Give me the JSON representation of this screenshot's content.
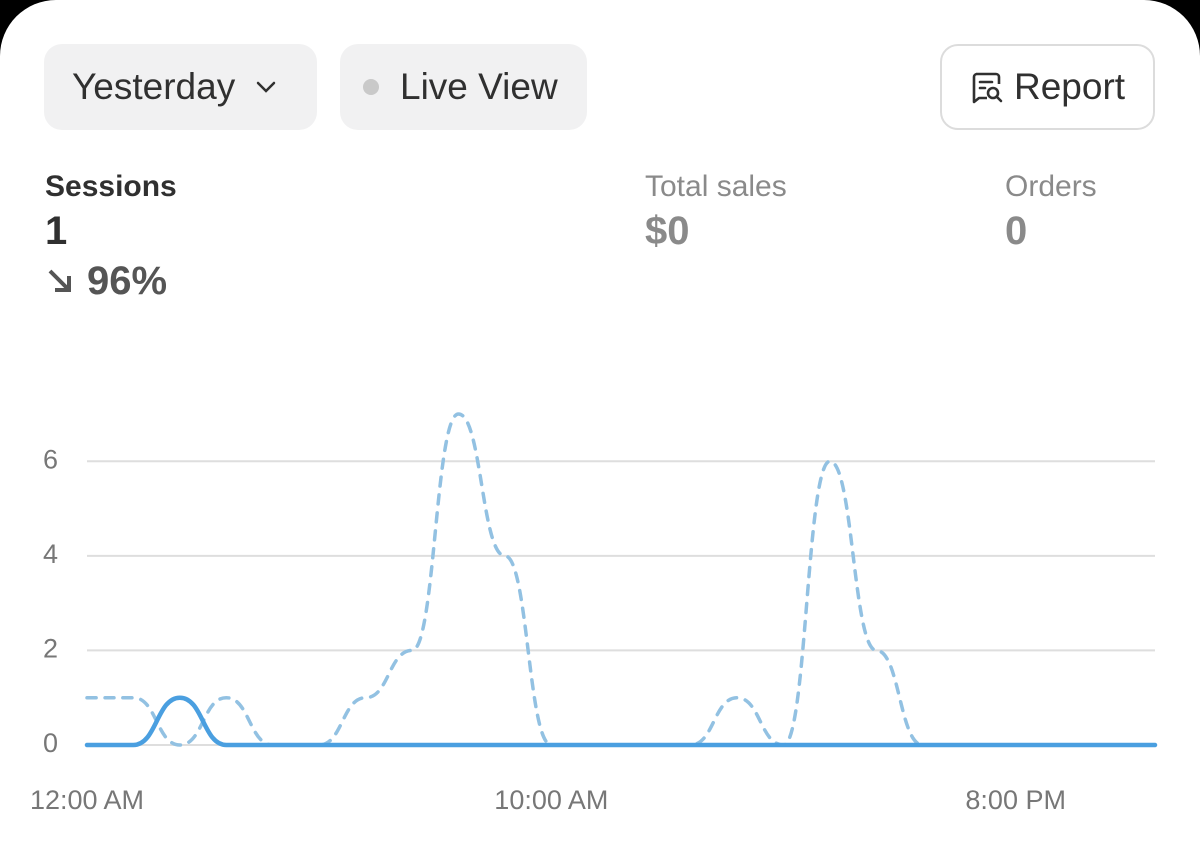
{
  "toolbar": {
    "period": "Yesterday",
    "live": "Live View",
    "report": "Report"
  },
  "metrics": [
    {
      "label": "Sessions",
      "value": "1",
      "change": "96%"
    },
    {
      "label": "Total sales",
      "value": "$0"
    },
    {
      "label": "Orders",
      "value": "0"
    }
  ],
  "chart_data": {
    "type": "line",
    "categories": [
      "12:00 AM",
      null,
      null,
      null,
      null,
      null,
      null,
      null,
      null,
      null,
      "10:00 AM",
      null,
      null,
      null,
      null,
      null,
      null,
      null,
      null,
      null,
      "8:00 PM",
      null,
      null,
      null
    ],
    "series": [
      {
        "color": "#92c1e2",
        "style": "dashed",
        "values": [
          1,
          1,
          0,
          1,
          0,
          0,
          1,
          2,
          7,
          4,
          0,
          0,
          0,
          0,
          1,
          0,
          6,
          2,
          0,
          0,
          0,
          0,
          0,
          0
        ]
      },
      {
        "color": "#4a9fe0",
        "style": "solid",
        "values": [
          0,
          0,
          1,
          0,
          0,
          0,
          0,
          0,
          0,
          0,
          0,
          0,
          0,
          0,
          0,
          0,
          0,
          0,
          0,
          0,
          0,
          0,
          0,
          0
        ]
      }
    ],
    "ylim": [
      0,
      7
    ],
    "yticks": [
      0,
      2,
      4,
      6
    ],
    "grid": true
  }
}
